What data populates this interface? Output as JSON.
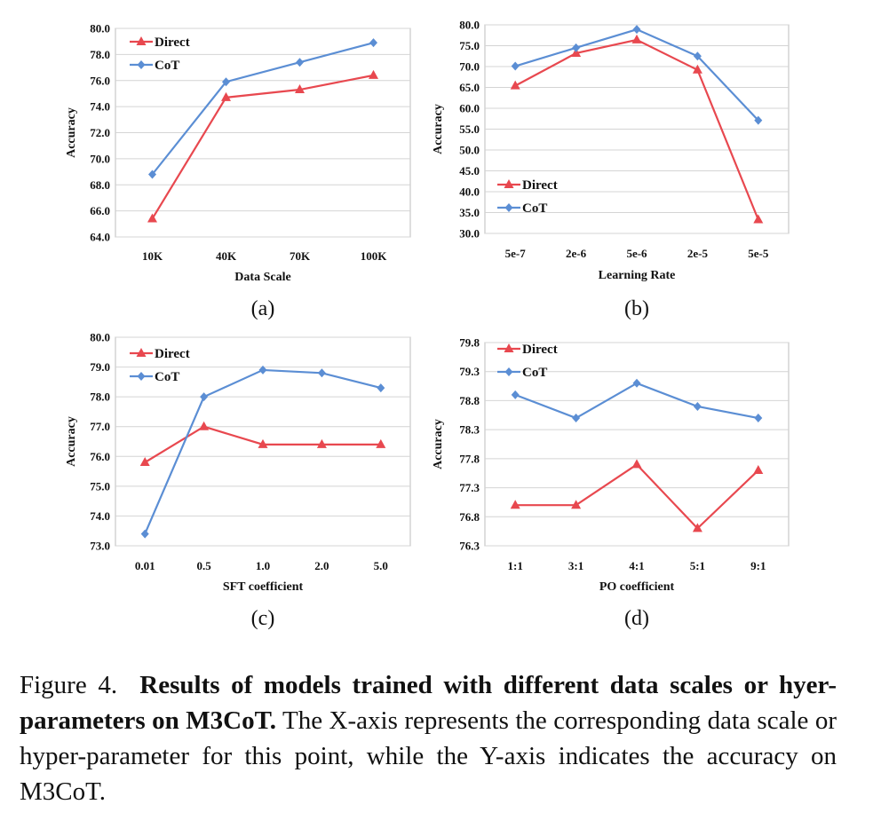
{
  "chart_data": [
    {
      "type": "line",
      "panel_label": "(a)",
      "xlabel": "Data Scale",
      "ylabel": "Accuracy",
      "categories": [
        "10K",
        "40K",
        "70K",
        "100K"
      ],
      "ylim": [
        64.0,
        80.0
      ],
      "yticks": [
        "64.0",
        "66.0",
        "68.0",
        "70.0",
        "72.0",
        "74.0",
        "76.0",
        "78.0",
        "80.0"
      ],
      "grid": true,
      "legend": "top-left",
      "series": [
        {
          "name": "Direct",
          "color": "#e8484f",
          "marker": "triangle",
          "values": [
            65.4,
            74.7,
            75.3,
            76.4
          ]
        },
        {
          "name": "CoT",
          "color": "#5b8ed4",
          "marker": "diamond",
          "values": [
            68.8,
            75.9,
            77.4,
            78.9
          ]
        }
      ]
    },
    {
      "type": "line",
      "panel_label": "(b)",
      "xlabel": "Learning Rate",
      "ylabel": "Accuracy",
      "categories": [
        "5e-7",
        "2e-6",
        "5e-6",
        "2e-5",
        "5e-5"
      ],
      "ylim": [
        30.0,
        80.0
      ],
      "yticks": [
        "30.0",
        "35.0",
        "40.0",
        "45.0",
        "50.0",
        "55.0",
        "60.0",
        "65.0",
        "70.0",
        "75.0",
        "80.0"
      ],
      "grid": true,
      "legend": "bottom-left",
      "series": [
        {
          "name": "Direct",
          "color": "#e8484f",
          "marker": "triangle",
          "values": [
            65.4,
            73.2,
            76.4,
            69.2,
            33.3
          ]
        },
        {
          "name": "CoT",
          "color": "#5b8ed4",
          "marker": "diamond",
          "values": [
            70.1,
            74.5,
            78.9,
            72.5,
            57.1
          ]
        }
      ]
    },
    {
      "type": "line",
      "panel_label": "(c)",
      "xlabel": "SFT coefficient",
      "ylabel": "Accuracy",
      "categories": [
        "0.01",
        "0.5",
        "1.0",
        "2.0",
        "5.0"
      ],
      "ylim": [
        73.0,
        80.0
      ],
      "yticks": [
        "73.0",
        "74.0",
        "75.0",
        "76.0",
        "77.0",
        "78.0",
        "79.0",
        "80.0"
      ],
      "grid": true,
      "legend": "top-left",
      "series": [
        {
          "name": "Direct",
          "color": "#e8484f",
          "marker": "triangle",
          "values": [
            75.8,
            77.0,
            76.4,
            76.4,
            76.4
          ]
        },
        {
          "name": "CoT",
          "color": "#5b8ed4",
          "marker": "diamond",
          "values": [
            73.4,
            78.0,
            78.9,
            78.8,
            78.3
          ]
        }
      ]
    },
    {
      "type": "line",
      "panel_label": "(d)",
      "xlabel": "PO coefficient",
      "ylabel": "Accuracy",
      "categories": [
        "1:1",
        "3:1",
        "4:1",
        "5:1",
        "9:1"
      ],
      "ylim": [
        76.3,
        79.8
      ],
      "yticks": [
        "76.3",
        "76.8",
        "77.3",
        "77.8",
        "78.3",
        "78.8",
        "79.3",
        "79.8"
      ],
      "grid": true,
      "legend": "top-left",
      "series": [
        {
          "name": "Direct",
          "color": "#e8484f",
          "marker": "triangle",
          "values": [
            77.0,
            77.0,
            77.7,
            76.6,
            77.6
          ]
        },
        {
          "name": "CoT",
          "color": "#5b8ed4",
          "marker": "diamond",
          "values": [
            78.9,
            78.5,
            79.1,
            78.7,
            78.5
          ]
        }
      ]
    }
  ],
  "caption": {
    "figure_label": "Figure 4.",
    "bold_title": "Results of models trained with different data scales or hyer-parameters on M3CoT.",
    "text": "The X-axis represents the corresponding data scale or hyper-parameter for this point, while the Y-axis indicates the accuracy on M3CoT."
  }
}
